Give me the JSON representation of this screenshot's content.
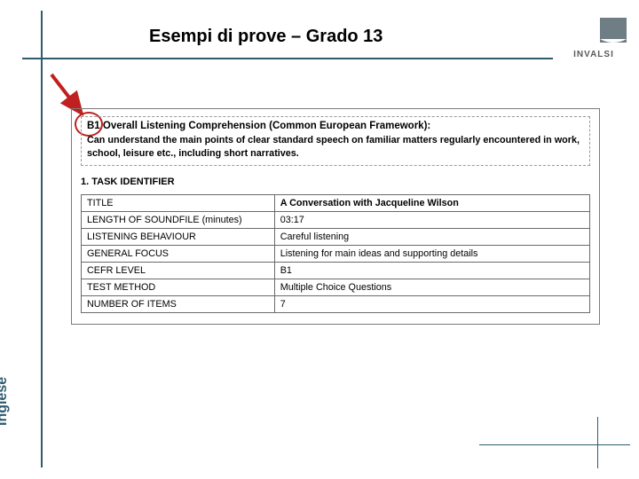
{
  "slide": {
    "title": "Esempi di prove – Grado 13",
    "sidebar_label": "Inglese",
    "logo_text": "INVALSI"
  },
  "colors": {
    "frame": "#2f5b6f",
    "arrow": "#c02020",
    "circle": "#c02020",
    "logo_shape": "#6f7d85"
  },
  "descriptor": {
    "heading": "B1 Overall Listening Comprehension (Common European Framework):",
    "body": "Can understand the main points of clear standard speech on familiar matters regularly encountered in work, school, leisure etc., including short narratives."
  },
  "section_label": "1. TASK IDENTIFIER",
  "task": {
    "rows": [
      {
        "k": "TITLE",
        "v": "A Conversation with Jacqueline Wilson"
      },
      {
        "k": "LENGTH OF SOUNDFILE (minutes)",
        "v": "03:17"
      },
      {
        "k": "LISTENING BEHAVIOUR",
        "v": "Careful listening"
      },
      {
        "k": "GENERAL FOCUS",
        "v": "Listening for main ideas and supporting details"
      },
      {
        "k": "CEFR LEVEL",
        "v": "B1"
      },
      {
        "k": "TEST METHOD",
        "v": "Multiple Choice Questions"
      },
      {
        "k": "NUMBER OF ITEMS",
        "v": "7"
      }
    ]
  }
}
